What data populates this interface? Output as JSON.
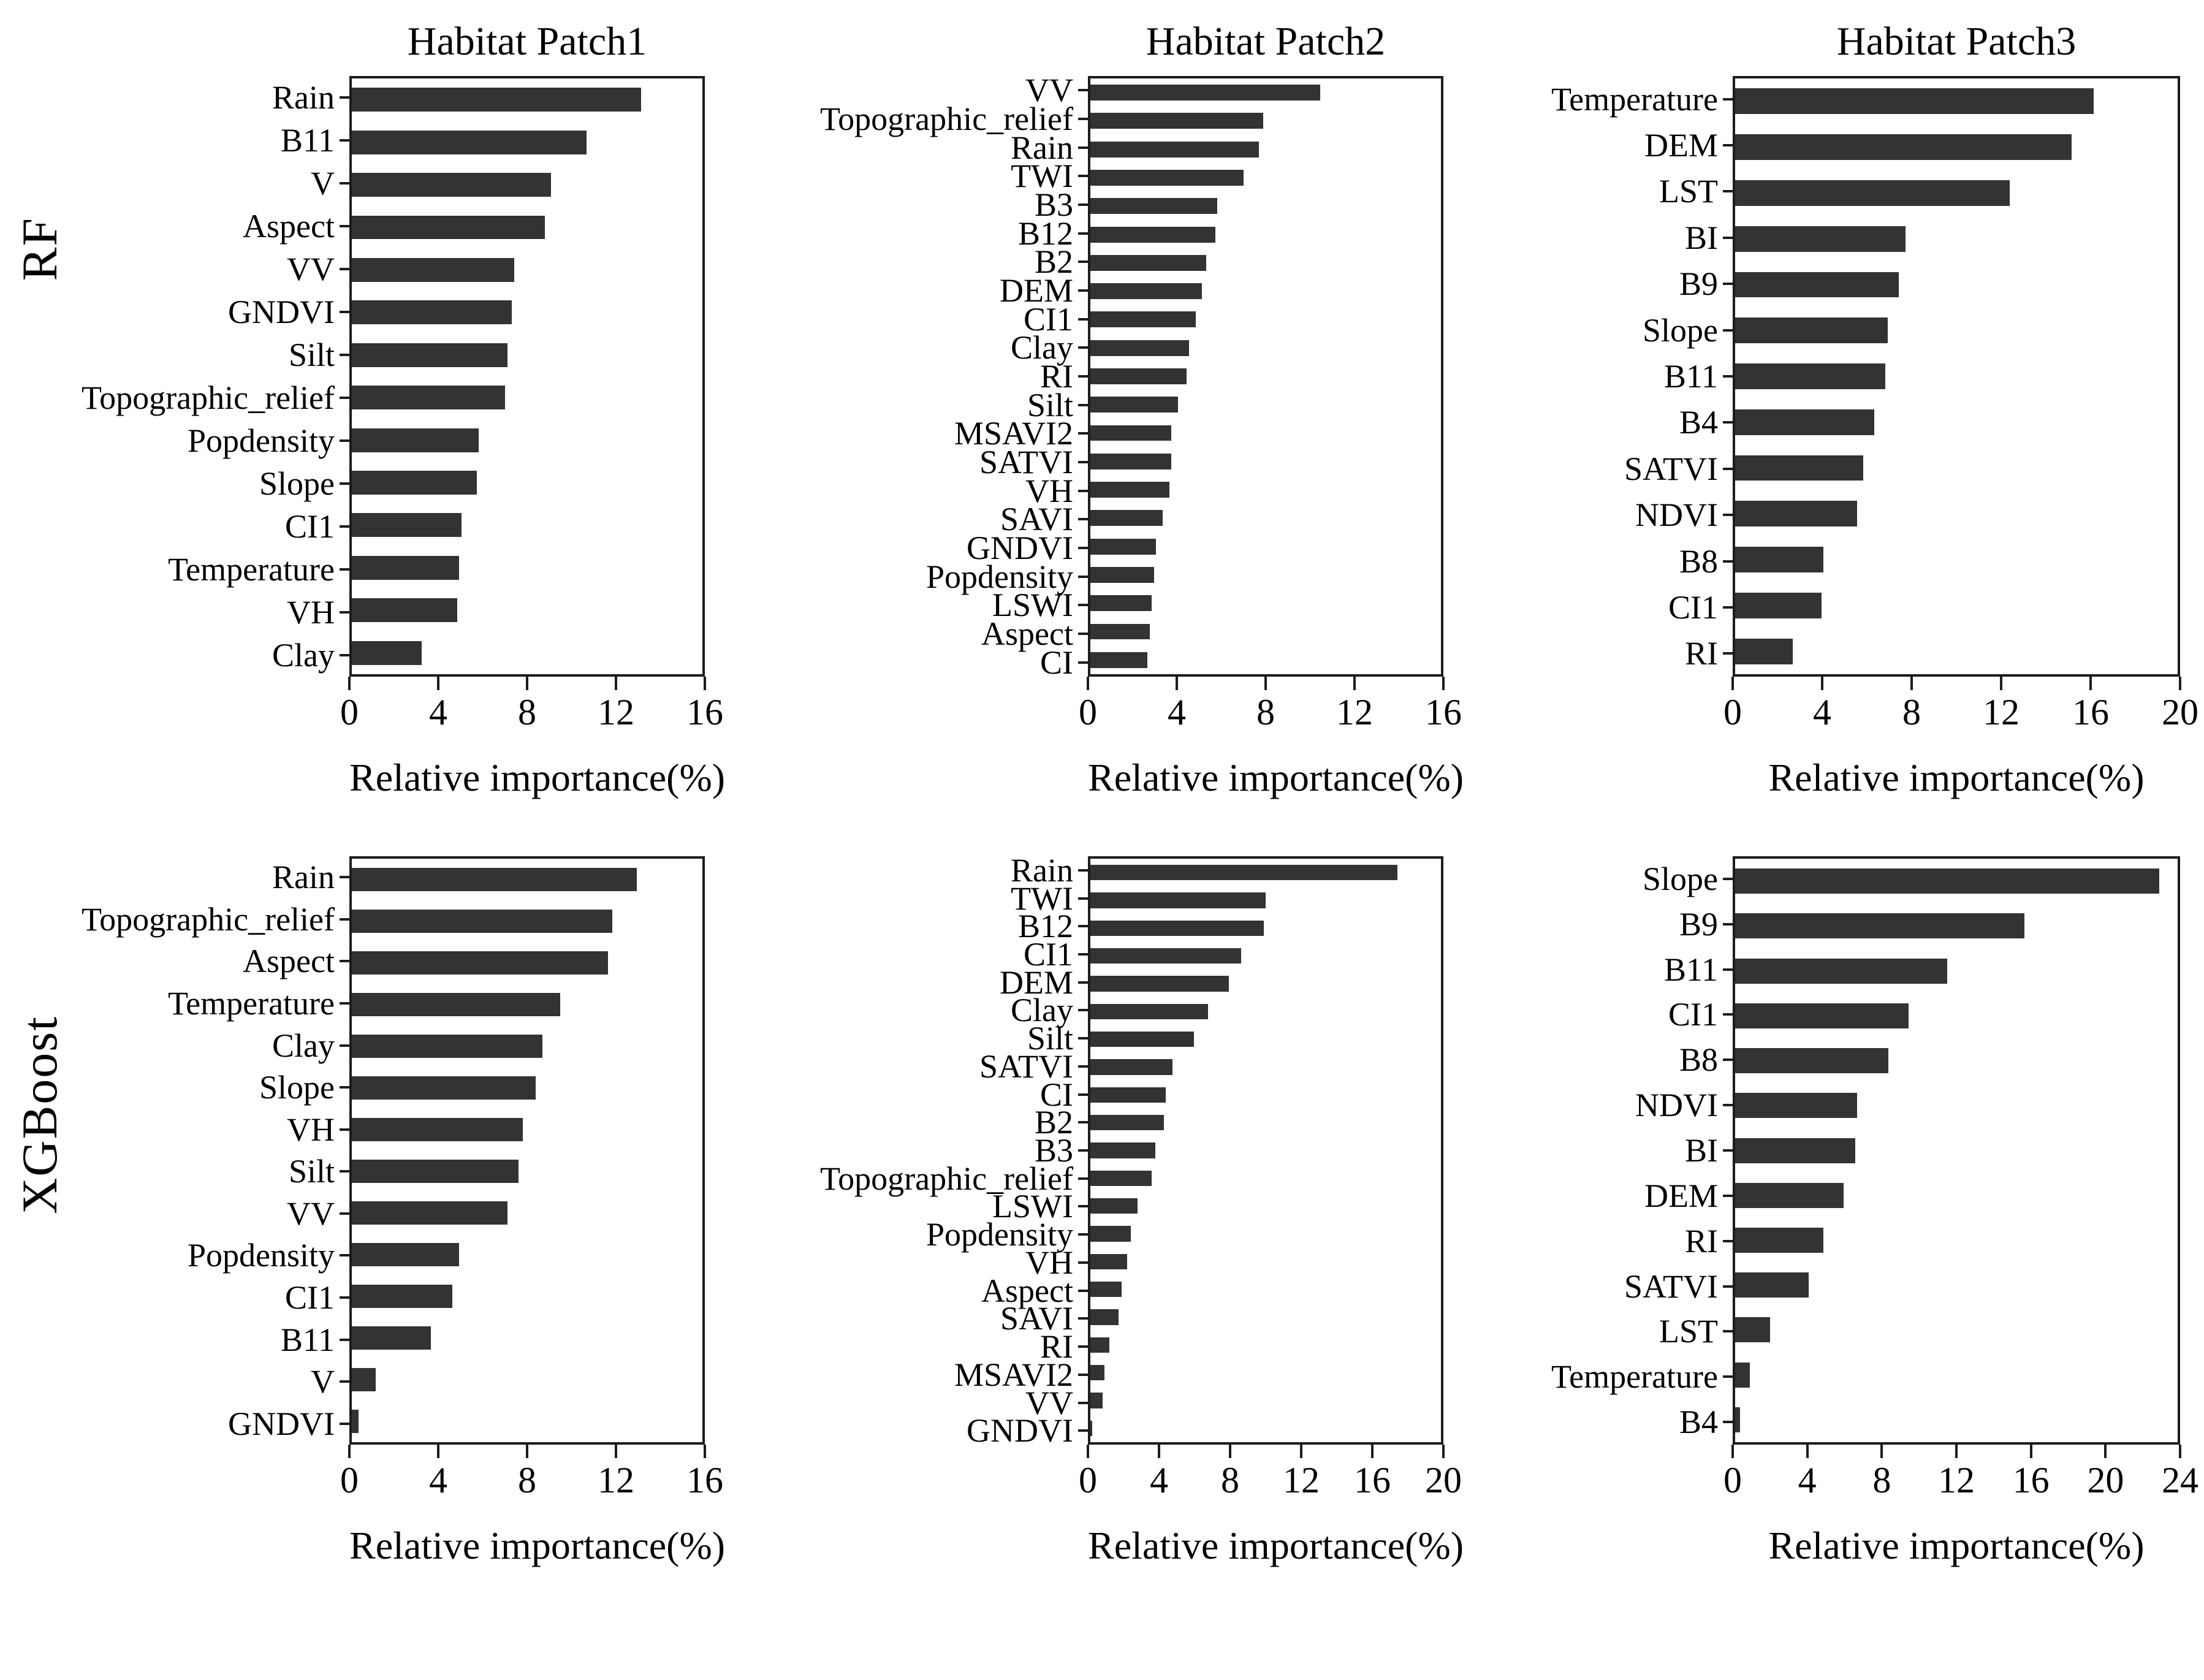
{
  "figure": {
    "background": "#ffffff",
    "bar_color": "#333333",
    "axis_color": "#1c1c1c",
    "text_color": "#000000",
    "row_labels": [
      "RF",
      "XGBoost"
    ],
    "col_titles": [
      "Habitat Patch1",
      "Habitat Patch2",
      "Habitat Patch3"
    ],
    "xlabel": "Relative importance(%)"
  },
  "chart_data": [
    {
      "type": "bar",
      "orientation": "horizontal",
      "model": "RF",
      "title": "Habitat Patch1",
      "xlabel": "Relative importance(%)",
      "xlim": [
        0,
        16
      ],
      "xticks": [
        0,
        4,
        8,
        12,
        16
      ],
      "grid": false,
      "categories": [
        "Rain",
        "B11",
        "V",
        "Aspect",
        "VV",
        "GNDVI",
        "Silt",
        "Topographic_relief",
        "Popdensity",
        "Slope",
        "CI1",
        "Temperature",
        "VH",
        "Clay"
      ],
      "values": [
        13.2,
        10.7,
        9.1,
        8.8,
        7.4,
        7.3,
        7.1,
        7.0,
        5.8,
        5.7,
        5.0,
        4.9,
        4.8,
        3.2
      ]
    },
    {
      "type": "bar",
      "orientation": "horizontal",
      "model": "RF",
      "title": "Habitat Patch2",
      "xlabel": "Relative importance(%)",
      "xlim": [
        0,
        16
      ],
      "xticks": [
        0,
        4,
        8,
        12,
        16
      ],
      "grid": false,
      "categories": [
        "VV",
        "Topographic_relief",
        "Rain",
        "TWI",
        "B3",
        "B12",
        "B2",
        "DEM",
        "CI1",
        "Clay",
        "RI",
        "Silt",
        "MSAVI2",
        "SATVI",
        "VH",
        "SAVI",
        "GNDVI",
        "Popdensity",
        "LSWI",
        "Aspect",
        "CI"
      ],
      "values": [
        10.5,
        7.9,
        7.7,
        7.0,
        5.8,
        5.7,
        5.3,
        5.1,
        4.8,
        4.5,
        4.4,
        4.0,
        3.7,
        3.7,
        3.6,
        3.3,
        3.0,
        2.9,
        2.8,
        2.7,
        2.6
      ]
    },
    {
      "type": "bar",
      "orientation": "horizontal",
      "model": "RF",
      "title": "Habitat Patch3",
      "xlabel": "Relative importance(%)",
      "xlim": [
        0,
        20
      ],
      "xticks": [
        0,
        4,
        8,
        12,
        16,
        20
      ],
      "grid": false,
      "categories": [
        "Temperature",
        "DEM",
        "LST",
        "BI",
        "B9",
        "Slope",
        "B11",
        "B4",
        "SATVI",
        "NDVI",
        "B8",
        "CI1",
        "RI"
      ],
      "values": [
        16.2,
        15.2,
        12.4,
        7.7,
        7.4,
        6.9,
        6.8,
        6.3,
        5.8,
        5.5,
        4.0,
        3.9,
        2.6
      ]
    },
    {
      "type": "bar",
      "orientation": "horizontal",
      "model": "XGBoost",
      "title": "",
      "xlabel": "Relative importance(%)",
      "xlim": [
        0,
        16
      ],
      "xticks": [
        0,
        4,
        8,
        12,
        16
      ],
      "grid": false,
      "categories": [
        "Rain",
        "Topographic_relief",
        "Aspect",
        "Temperature",
        "Clay",
        "Slope",
        "VH",
        "Silt",
        "VV",
        "Popdensity",
        "CI1",
        "B11",
        "V",
        "GNDVI"
      ],
      "values": [
        13.0,
        11.9,
        11.7,
        9.5,
        8.7,
        8.4,
        7.8,
        7.6,
        7.1,
        4.9,
        4.6,
        3.6,
        1.1,
        0.3
      ]
    },
    {
      "type": "bar",
      "orientation": "horizontal",
      "model": "XGBoost",
      "title": "",
      "xlabel": "Relative importance(%)",
      "xlim": [
        0,
        20
      ],
      "xticks": [
        0,
        4,
        8,
        12,
        16,
        20
      ],
      "grid": false,
      "categories": [
        "Rain",
        "TWI",
        "B12",
        "CI1",
        "DEM",
        "Clay",
        "Silt",
        "SATVI",
        "CI",
        "B2",
        "B3",
        "Topographic_relief",
        "LSWI",
        "Popdensity",
        "VH",
        "Aspect",
        "SAVI",
        "RI",
        "MSAVI2",
        "VV",
        "GNDVI"
      ],
      "values": [
        17.5,
        10.0,
        9.9,
        8.6,
        7.9,
        6.7,
        5.9,
        4.7,
        4.3,
        4.2,
        3.7,
        3.5,
        2.7,
        2.3,
        2.1,
        1.8,
        1.6,
        1.1,
        0.8,
        0.7,
        0.1
      ]
    },
    {
      "type": "bar",
      "orientation": "horizontal",
      "model": "XGBoost",
      "title": "",
      "xlabel": "Relative importance(%)",
      "xlim": [
        0,
        24
      ],
      "xticks": [
        0,
        4,
        8,
        12,
        16,
        20,
        24
      ],
      "grid": false,
      "categories": [
        "Slope",
        "B9",
        "B11",
        "CI1",
        "B8",
        "NDVI",
        "BI",
        "DEM",
        "RI",
        "SATVI",
        "LST",
        "Temperature",
        "B4"
      ],
      "values": [
        23.0,
        15.7,
        11.5,
        9.4,
        8.3,
        6.6,
        6.5,
        5.9,
        4.8,
        4.0,
        1.9,
        0.8,
        0.25
      ]
    }
  ]
}
